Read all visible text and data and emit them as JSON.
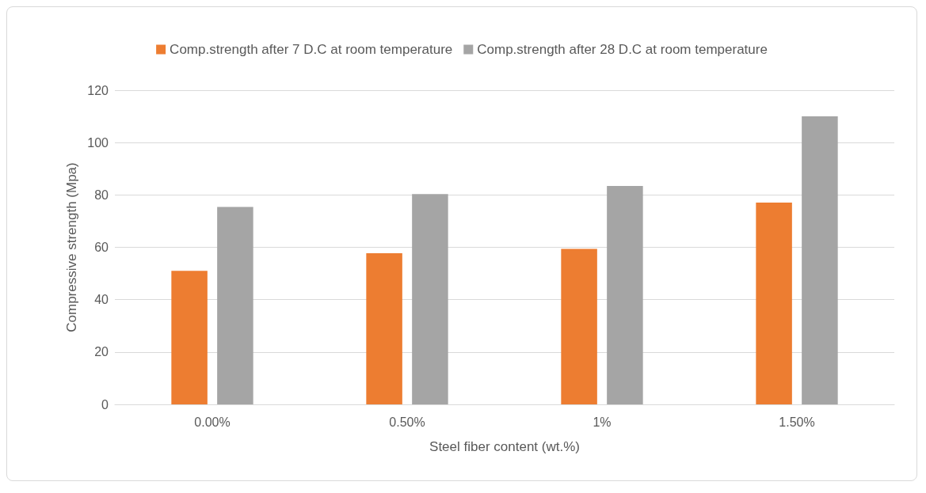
{
  "chart_data": {
    "type": "bar",
    "xlabel": "Steel fiber content (wt.%)",
    "ylabel": "Compressive strength (Mpa)",
    "categories": [
      "0.00%",
      "0.50%",
      "1%",
      "1.50%"
    ],
    "series": [
      {
        "name": "Comp.strength after 7 D.C at room temperature",
        "color": "#ed7d31",
        "values": [
          51,
          57.7,
          59.4,
          77.1
        ]
      },
      {
        "name": "Comp.strength after 28 D.C at room temperature",
        "color": "#a5a5a5",
        "values": [
          75.4,
          80.3,
          83.4,
          110
        ]
      }
    ],
    "ylim": [
      0,
      120
    ],
    "yticks": [
      0,
      20,
      40,
      60,
      80,
      100,
      120
    ],
    "grid": "y",
    "legend": "top"
  }
}
